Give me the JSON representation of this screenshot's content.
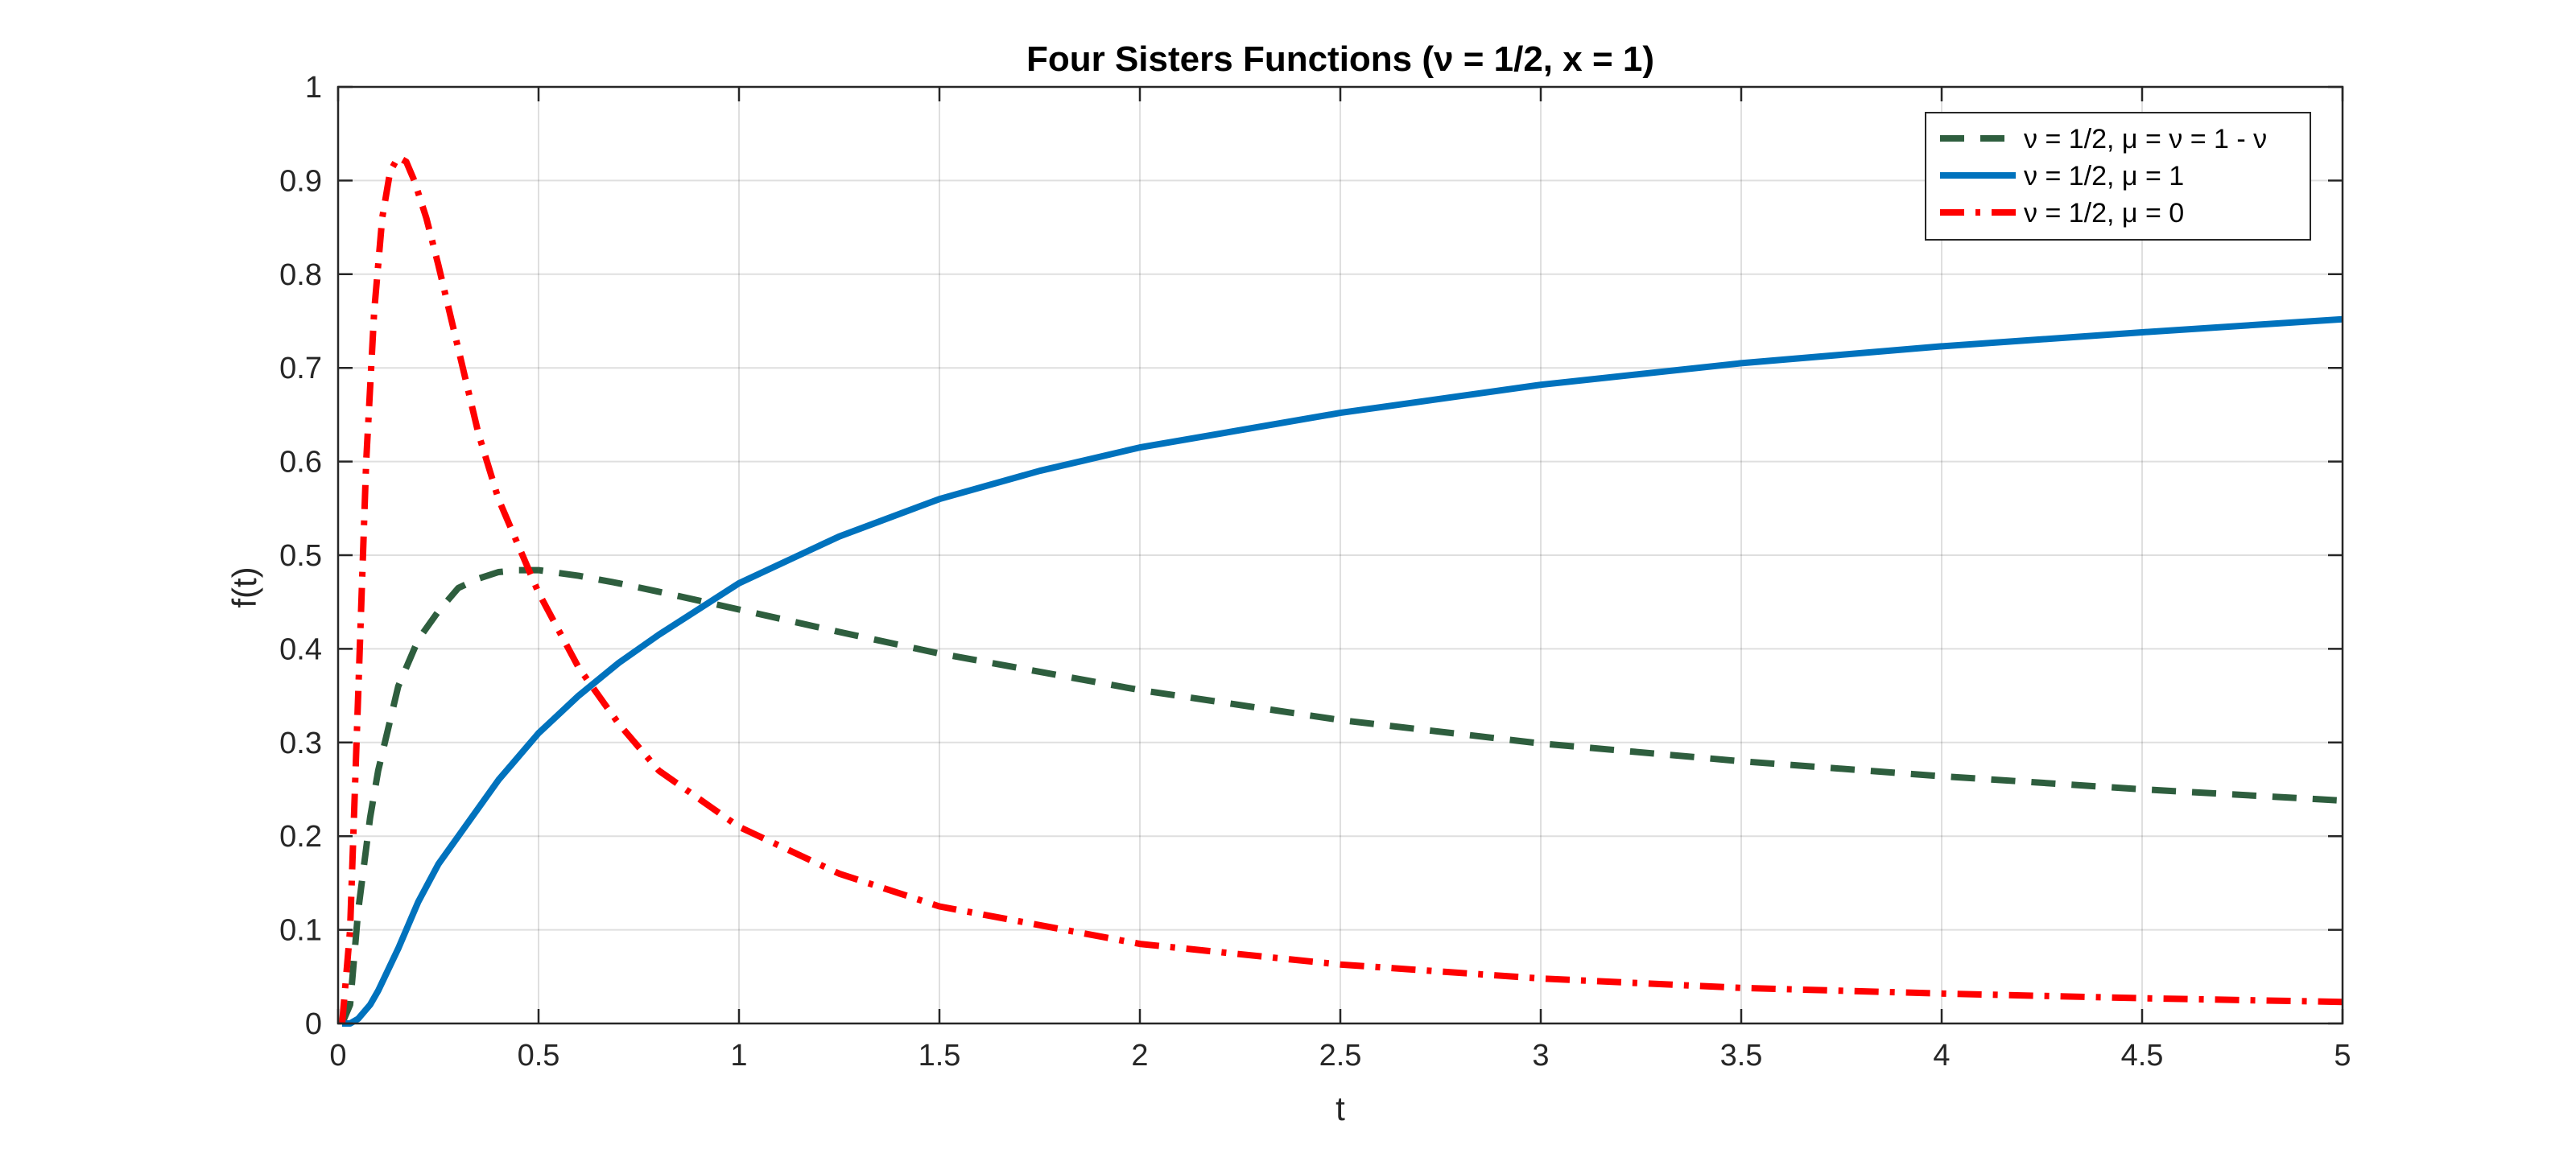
{
  "chart_data": {
    "type": "line",
    "title": "Four Sisters Functions (ν = 1/2, x = 1)",
    "xlabel": "t",
    "ylabel": "f(t)",
    "xlim": [
      0,
      5
    ],
    "ylim": [
      0,
      1
    ],
    "xticks": [
      0,
      0.5,
      1,
      1.5,
      2,
      2.5,
      3,
      3.5,
      4,
      4.5,
      5
    ],
    "xtick_labels": [
      "0",
      "0.5",
      "1",
      "1.5",
      "2",
      "2.5",
      "3",
      "3.5",
      "4",
      "4.5",
      "5"
    ],
    "yticks": [
      0,
      0.1,
      0.2,
      0.3,
      0.4,
      0.5,
      0.6,
      0.7,
      0.8,
      0.9,
      1
    ],
    "ytick_labels": [
      "0",
      "0.1",
      "0.2",
      "0.3",
      "0.4",
      "0.5",
      "0.6",
      "0.7",
      "0.8",
      "0.9",
      "1"
    ],
    "grid": true,
    "legend_position": "top-right",
    "series": [
      {
        "name": "ν = 1/2, μ = ν = 1 - ν",
        "color": "#2E5E3E",
        "style": "dashed",
        "x": [
          0.01,
          0.03,
          0.05,
          0.08,
          0.1,
          0.15,
          0.2,
          0.25,
          0.3,
          0.35,
          0.4,
          0.45,
          0.5,
          0.6,
          0.7,
          0.8,
          1,
          1.25,
          1.5,
          2,
          2.5,
          3,
          3.5,
          4,
          4.5,
          5
        ],
        "y": [
          0.0,
          0.02,
          0.12,
          0.22,
          0.27,
          0.36,
          0.41,
          0.44,
          0.465,
          0.475,
          0.482,
          0.484,
          0.484,
          0.478,
          0.47,
          0.461,
          0.442,
          0.418,
          0.395,
          0.356,
          0.324,
          0.299,
          0.28,
          0.264,
          0.25,
          0.238
        ]
      },
      {
        "name": "ν = 1/2, μ = 1",
        "color": "#0072BD",
        "style": "solid",
        "x": [
          0.01,
          0.03,
          0.05,
          0.08,
          0.1,
          0.15,
          0.2,
          0.25,
          0.3,
          0.4,
          0.5,
          0.6,
          0.7,
          0.8,
          1,
          1.25,
          1.5,
          1.75,
          2,
          2.5,
          3,
          3.5,
          4,
          4.5,
          5
        ],
        "y": [
          0.0,
          0.0,
          0.005,
          0.02,
          0.035,
          0.08,
          0.13,
          0.17,
          0.2,
          0.26,
          0.31,
          0.35,
          0.385,
          0.415,
          0.47,
          0.52,
          0.56,
          0.59,
          0.615,
          0.652,
          0.682,
          0.705,
          0.723,
          0.738,
          0.752
        ]
      },
      {
        "name": "ν = 1/2, μ = 0",
        "color": "#FF0000",
        "style": "dashdot",
        "x": [
          0.01,
          0.03,
          0.05,
          0.07,
          0.09,
          0.11,
          0.13,
          0.15,
          0.17,
          0.19,
          0.22,
          0.25,
          0.3,
          0.35,
          0.4,
          0.5,
          0.6,
          0.7,
          0.8,
          1,
          1.25,
          1.5,
          2,
          2.5,
          3,
          3.5,
          4,
          4.5,
          5
        ],
        "y": [
          0.0,
          0.1,
          0.35,
          0.6,
          0.76,
          0.86,
          0.91,
          0.925,
          0.92,
          0.9,
          0.86,
          0.81,
          0.72,
          0.63,
          0.56,
          0.46,
          0.38,
          0.32,
          0.27,
          0.21,
          0.16,
          0.125,
          0.085,
          0.063,
          0.048,
          0.038,
          0.032,
          0.027,
          0.023
        ]
      }
    ]
  }
}
